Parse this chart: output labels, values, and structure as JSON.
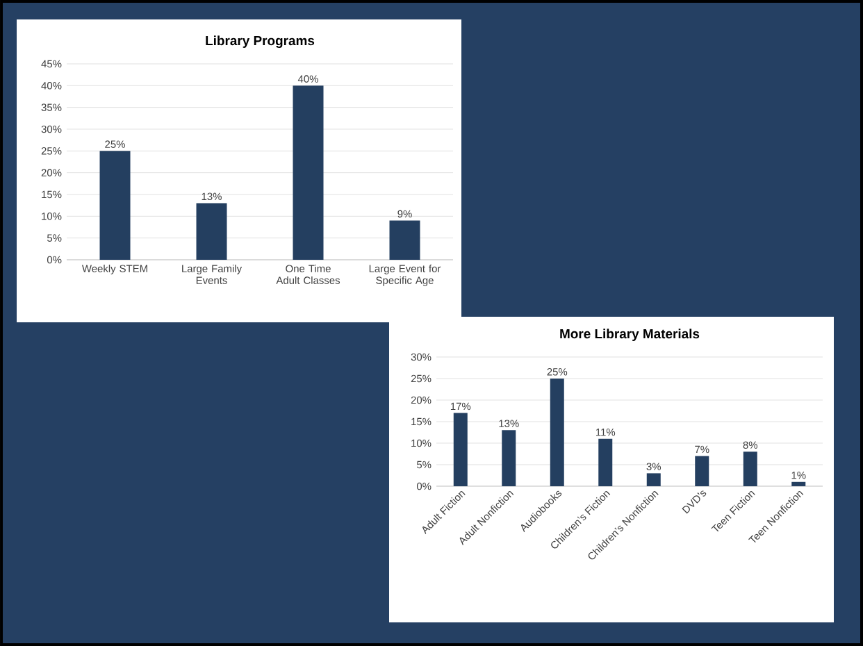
{
  "chart_data": [
    {
      "type": "bar",
      "title": "Library Programs",
      "categories": [
        "Weekly STEM",
        "Large Family Events",
        "One Time Adult Classes",
        "Large Event for Specific Age"
      ],
      "values": [
        25,
        13,
        40,
        9
      ],
      "value_labels": [
        "25%",
        "13%",
        "40%",
        "9%"
      ],
      "color": "#243f60",
      "ylim": [
        0,
        45
      ],
      "yticks": [
        {
          "value": 0,
          "label": "0%"
        },
        {
          "value": 5,
          "label": "5%"
        },
        {
          "value": 10,
          "label": "10%"
        },
        {
          "value": 15,
          "label": "15%"
        },
        {
          "value": 20,
          "label": "20%"
        },
        {
          "value": 25,
          "label": "25%"
        },
        {
          "value": 30,
          "label": "30%"
        },
        {
          "value": 35,
          "label": "35%"
        },
        {
          "value": 40,
          "label": "40%"
        },
        {
          "value": 45,
          "label": "45%"
        }
      ],
      "grid": "y"
    },
    {
      "type": "bar",
      "title": "More Library Materials",
      "categories": [
        "Adult Fiction",
        "Adult Nonfiction",
        "Audiobooks",
        "Children’s Fiction",
        "Children’s Nonfiction",
        "DVD’s",
        "Teen Fiction",
        "Teen Nonfiction"
      ],
      "values": [
        17,
        13,
        25,
        11,
        3,
        7,
        8,
        1
      ],
      "value_labels": [
        "17%",
        "13%",
        "25%",
        "11%",
        "3%",
        "7%",
        "8%",
        "1%"
      ],
      "color": "#243f60",
      "ylim": [
        0,
        30
      ],
      "yticks": [
        {
          "value": 0,
          "label": "0%"
        },
        {
          "value": 5,
          "label": "5%"
        },
        {
          "value": 10,
          "label": "10%"
        },
        {
          "value": 15,
          "label": "15%"
        },
        {
          "value": 20,
          "label": "20%"
        },
        {
          "value": 25,
          "label": "25%"
        },
        {
          "value": 30,
          "label": "30%"
        }
      ],
      "grid": "y"
    }
  ]
}
